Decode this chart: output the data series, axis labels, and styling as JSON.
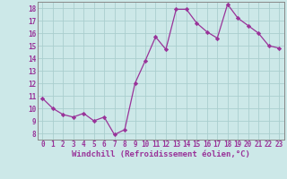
{
  "x": [
    0,
    1,
    2,
    3,
    4,
    5,
    6,
    7,
    8,
    9,
    10,
    11,
    12,
    13,
    14,
    15,
    16,
    17,
    18,
    19,
    20,
    21,
    22,
    23
  ],
  "y": [
    10.8,
    10.0,
    9.5,
    9.3,
    9.6,
    9.0,
    9.3,
    7.9,
    8.3,
    12.0,
    13.8,
    15.7,
    14.7,
    17.9,
    17.9,
    16.8,
    16.1,
    15.6,
    18.3,
    17.2,
    16.6,
    16.0,
    15.0,
    14.8
  ],
  "line_color": "#993399",
  "marker": "D",
  "marker_size": 2.2,
  "bg_color": "#cce8e8",
  "grid_color": "#aacece",
  "xlabel": "Windchill (Refroidissement éolien,°C)",
  "xlim": [
    -0.5,
    23.5
  ],
  "ylim": [
    7.5,
    18.5
  ],
  "yticks": [
    8,
    9,
    10,
    11,
    12,
    13,
    14,
    15,
    16,
    17,
    18
  ],
  "xticks": [
    0,
    1,
    2,
    3,
    4,
    5,
    6,
    7,
    8,
    9,
    10,
    11,
    12,
    13,
    14,
    15,
    16,
    17,
    18,
    19,
    20,
    21,
    22,
    23
  ],
  "tick_fontsize": 5.5,
  "label_fontsize": 6.5,
  "tick_color": "#993399",
  "spine_color": "#888888"
}
